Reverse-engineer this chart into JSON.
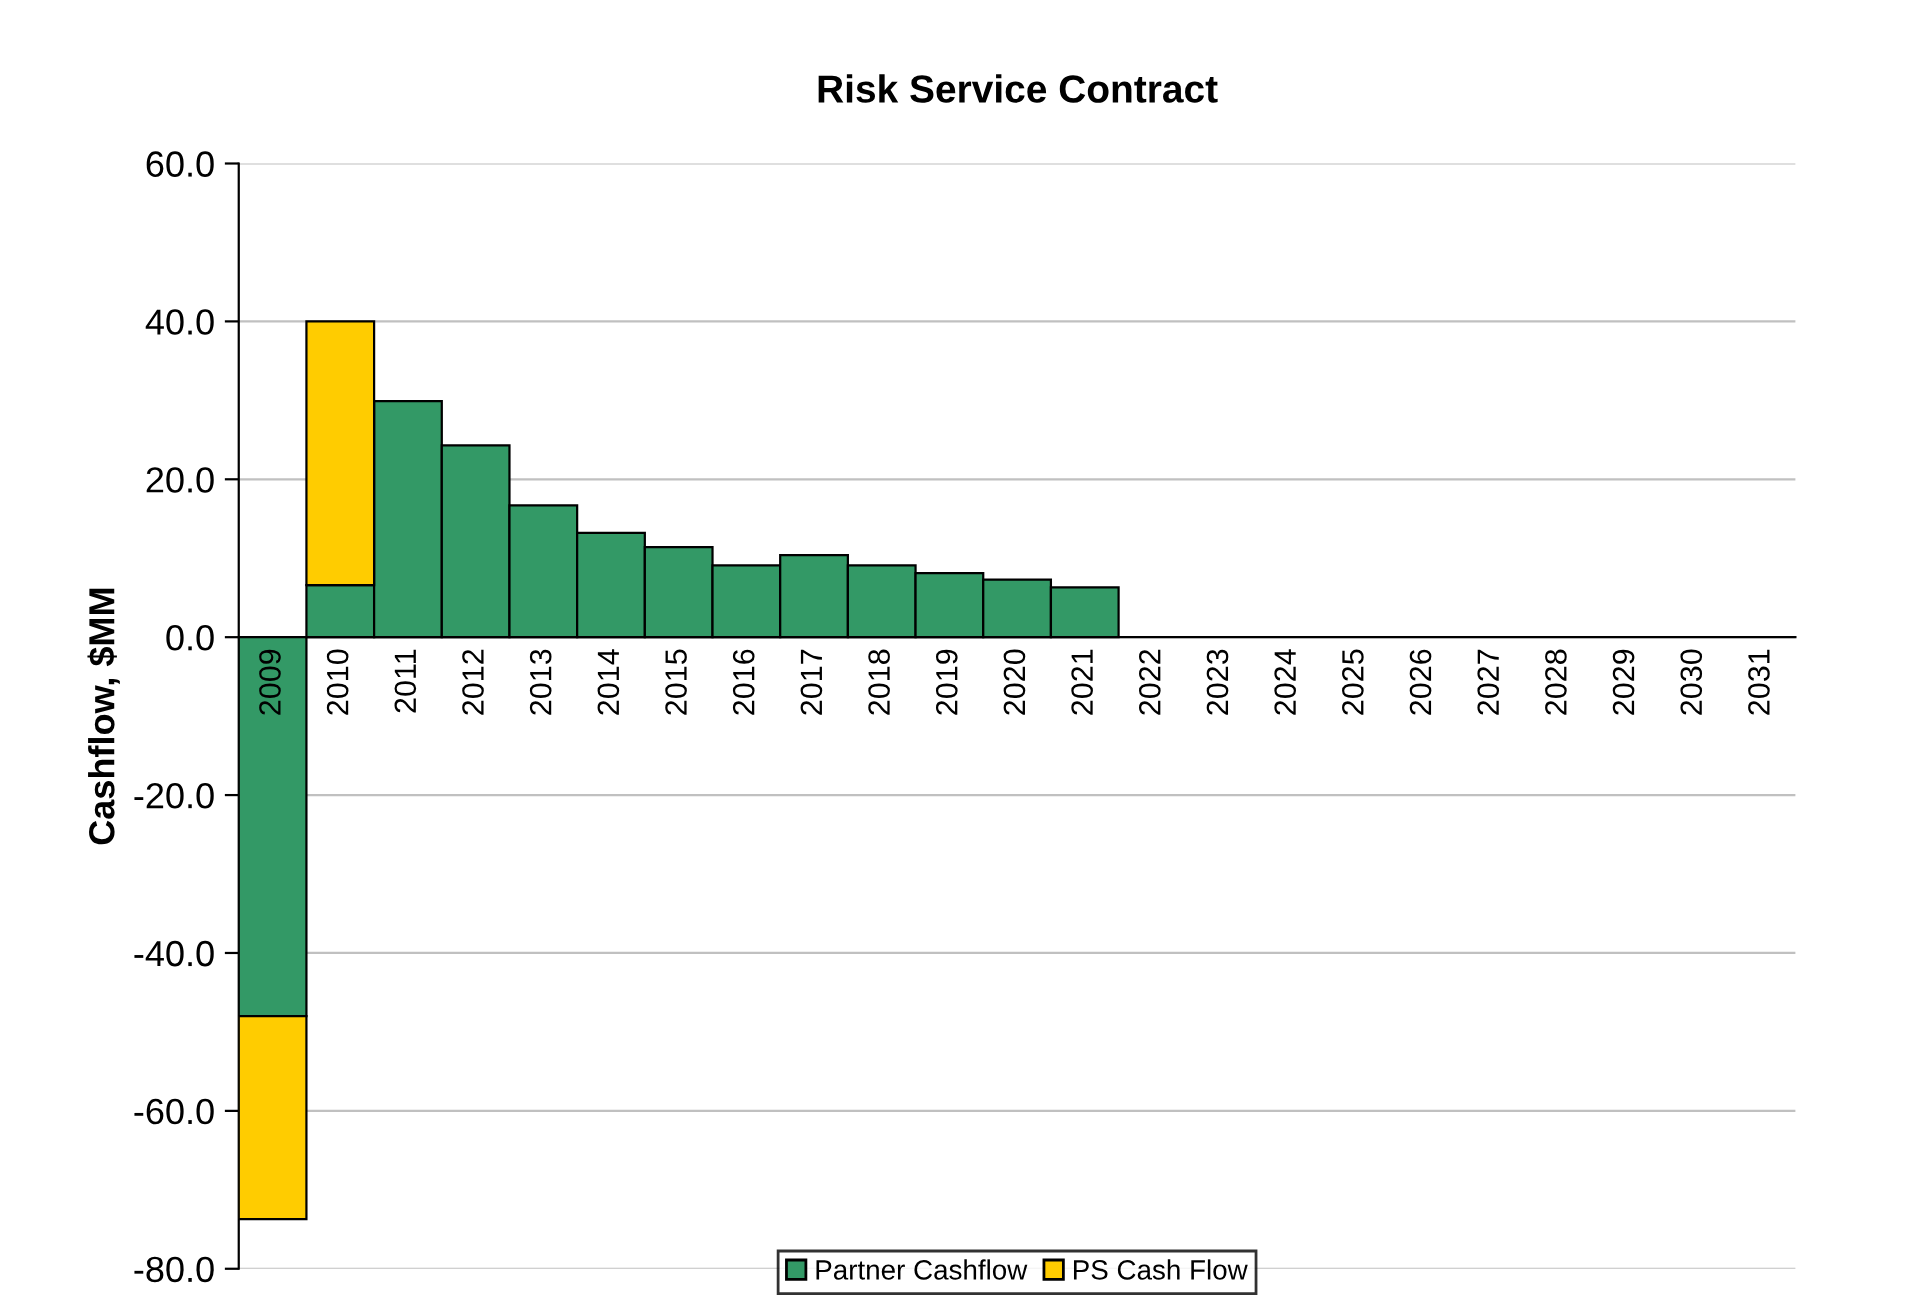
{
  "chart_data": {
    "type": "bar",
    "title": "Risk Service Contract",
    "ylabel": "Cashflow, $MM",
    "categories": [
      "2009",
      "2010",
      "2011",
      "2012",
      "2013",
      "2014",
      "2015",
      "2016",
      "2017",
      "2018",
      "2019",
      "2020",
      "2021",
      "2022",
      "2023",
      "2024",
      "2025",
      "2026",
      "2027",
      "2028",
      "2029",
      "2030",
      "2031"
    ],
    "stacked": true,
    "series": [
      {
        "name": "Partner Cashflow",
        "color": "#339966",
        "values": [
          -48.0,
          6.6,
          29.9,
          24.3,
          16.7,
          13.2,
          11.4,
          9.1,
          10.4,
          9.1,
          8.1,
          7.3,
          6.3,
          0,
          0,
          0,
          0,
          0,
          0,
          0,
          0,
          0,
          0
        ]
      },
      {
        "name": "PS Cash Flow",
        "color": "#ffcc00",
        "values": [
          -25.7,
          33.4,
          0,
          0,
          0,
          0,
          0,
          0,
          0,
          0,
          0,
          0,
          0,
          0,
          0,
          0,
          0,
          0,
          0,
          0,
          0,
          0,
          0
        ]
      }
    ],
    "ylim": [
      -80,
      60
    ],
    "yticks": [
      {
        "value": -80,
        "label": "-80.0"
      },
      {
        "value": -60,
        "label": "-60.0"
      },
      {
        "value": -40,
        "label": "-40.0"
      },
      {
        "value": -20,
        "label": "-20.0"
      },
      {
        "value": 0,
        "label": "0.0"
      },
      {
        "value": 20,
        "label": "20.0"
      },
      {
        "value": 40,
        "label": "40.0"
      },
      {
        "value": 60,
        "label": "60.0"
      }
    ],
    "grid": "y",
    "legend": "bottom"
  }
}
